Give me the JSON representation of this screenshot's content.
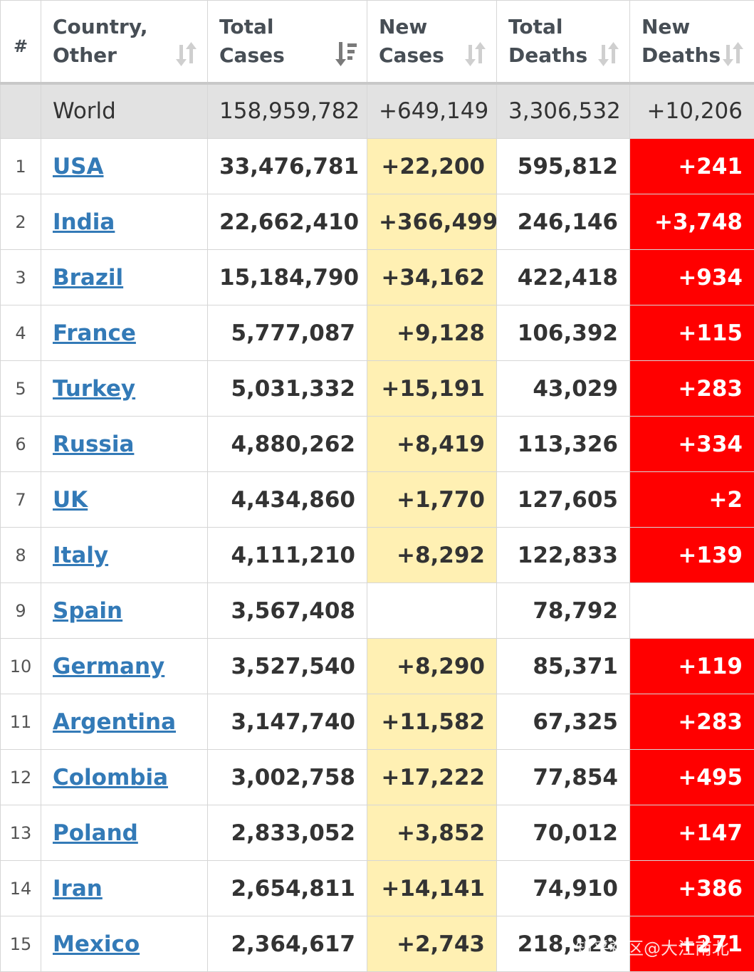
{
  "headers": {
    "num": "#",
    "country": [
      "Country,",
      "Other"
    ],
    "total_cases": [
      "Total",
      "Cases"
    ],
    "new_cases": [
      "New",
      "Cases"
    ],
    "total_deaths": [
      "Total",
      "Deaths"
    ],
    "new_deaths": [
      "New",
      "Deaths"
    ]
  },
  "colors": {
    "link": "#337ab7",
    "new_cases_highlight": "#fff0b3",
    "new_deaths_highlight": "#ff0000",
    "world_row_bg": "#e2e2e2"
  },
  "world": {
    "country": "World",
    "total_cases": "158,959,782",
    "new_cases": "+649,149",
    "total_deaths": "3,306,532",
    "new_deaths": "+10,206"
  },
  "rows": [
    {
      "idx": "1",
      "country": "USA",
      "total_cases": "33,476,781",
      "new_cases": "+22,200",
      "total_deaths": "595,812",
      "new_deaths": "+241"
    },
    {
      "idx": "2",
      "country": "India",
      "total_cases": "22,662,410",
      "new_cases": "+366,499",
      "total_deaths": "246,146",
      "new_deaths": "+3,748"
    },
    {
      "idx": "3",
      "country": "Brazil",
      "total_cases": "15,184,790",
      "new_cases": "+34,162",
      "total_deaths": "422,418",
      "new_deaths": "+934"
    },
    {
      "idx": "4",
      "country": "France",
      "total_cases": "5,777,087",
      "new_cases": "+9,128",
      "total_deaths": "106,392",
      "new_deaths": "+115"
    },
    {
      "idx": "5",
      "country": "Turkey",
      "total_cases": "5,031,332",
      "new_cases": "+15,191",
      "total_deaths": "43,029",
      "new_deaths": "+283"
    },
    {
      "idx": "6",
      "country": "Russia",
      "total_cases": "4,880,262",
      "new_cases": "+8,419",
      "total_deaths": "113,326",
      "new_deaths": "+334"
    },
    {
      "idx": "7",
      "country": "UK",
      "total_cases": "4,434,860",
      "new_cases": "+1,770",
      "total_deaths": "127,605",
      "new_deaths": "+2"
    },
    {
      "idx": "8",
      "country": "Italy",
      "total_cases": "4,111,210",
      "new_cases": "+8,292",
      "total_deaths": "122,833",
      "new_deaths": "+139"
    },
    {
      "idx": "9",
      "country": "Spain",
      "total_cases": "3,567,408",
      "new_cases": "",
      "total_deaths": "78,792",
      "new_deaths": ""
    },
    {
      "idx": "10",
      "country": "Germany",
      "total_cases": "3,527,540",
      "new_cases": "+8,290",
      "total_deaths": "85,371",
      "new_deaths": "+119"
    },
    {
      "idx": "11",
      "country": "Argentina",
      "total_cases": "3,147,740",
      "new_cases": "+11,582",
      "total_deaths": "67,325",
      "new_deaths": "+283"
    },
    {
      "idx": "12",
      "country": "Colombia",
      "total_cases": "3,002,758",
      "new_cases": "+17,222",
      "total_deaths": "77,854",
      "new_deaths": "+495"
    },
    {
      "idx": "13",
      "country": "Poland",
      "total_cases": "2,833,052",
      "new_cases": "+3,852",
      "total_deaths": "70,012",
      "new_deaths": "+147"
    },
    {
      "idx": "14",
      "country": "Iran",
      "total_cases": "2,654,811",
      "new_cases": "+14,141",
      "total_deaths": "74,910",
      "new_deaths": "+386"
    },
    {
      "idx": "15",
      "country": "Mexico",
      "total_cases": "2,364,617",
      "new_cases": "+2,743",
      "total_deaths": "218,928",
      "new_deaths": "+271"
    }
  ],
  "watermark": "知乎社区@大江南北"
}
